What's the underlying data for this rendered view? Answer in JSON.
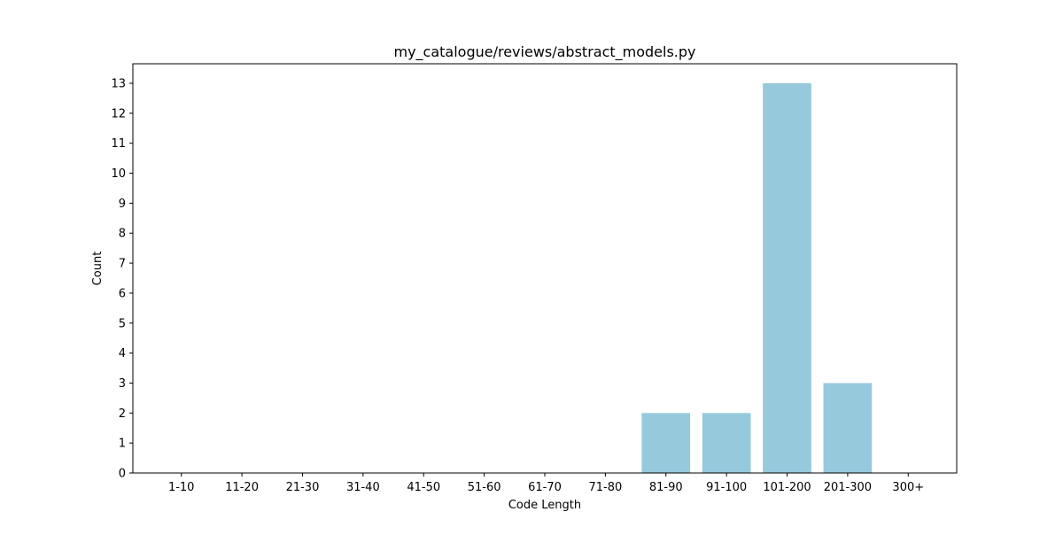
{
  "chart_data": {
    "type": "bar",
    "title": "my_catalogue/reviews/abstract_models.py",
    "xlabel": "Code Length",
    "ylabel": "Count",
    "categories": [
      "1-10",
      "11-20",
      "21-30",
      "31-40",
      "41-50",
      "51-60",
      "61-70",
      "71-80",
      "81-90",
      "91-100",
      "101-200",
      "201-300",
      "300+"
    ],
    "values": [
      0,
      0,
      0,
      0,
      0,
      0,
      0,
      0,
      2,
      2,
      13,
      3,
      0
    ],
    "yticks": [
      0,
      1,
      2,
      3,
      4,
      5,
      6,
      7,
      8,
      9,
      10,
      11,
      12,
      13
    ],
    "ylim": [
      0,
      13.65
    ],
    "bar_color": "#96c9dc",
    "grid": false,
    "legend": false
  }
}
